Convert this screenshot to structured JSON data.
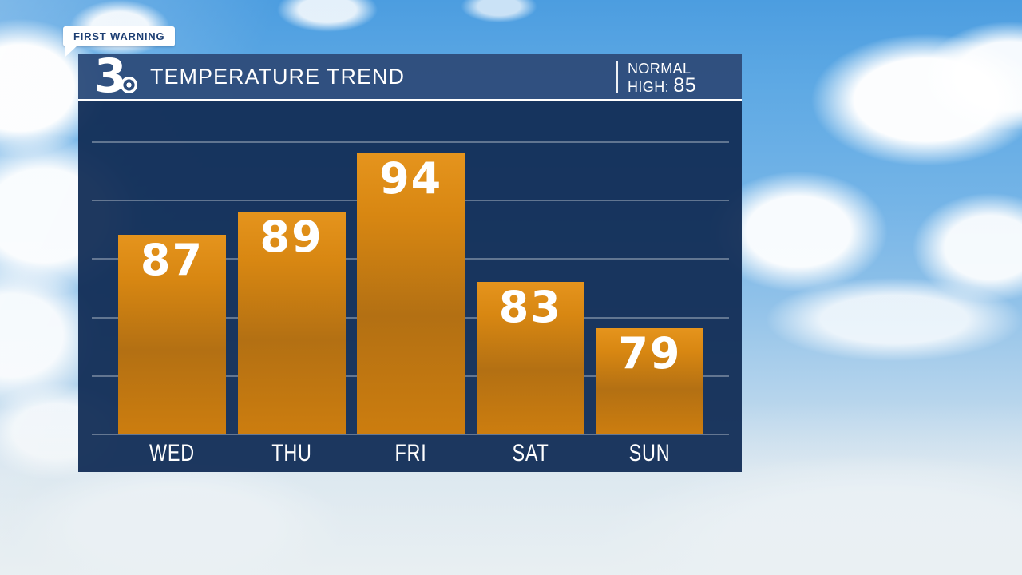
{
  "branding": {
    "bug_label": "FIRST WARNING",
    "channel_number": "3",
    "channel_logo_icon": "cbs-eye-icon"
  },
  "header": {
    "title": "TEMPERATURE TREND",
    "normal_line1": "NORMAL",
    "normal_line2_label": "HIGH:",
    "normal_line2_value": "85"
  },
  "chart_data": {
    "type": "bar",
    "title": "TEMPERATURE TREND",
    "categories": [
      "WED",
      "THU",
      "FRI",
      "SAT",
      "SUN"
    ],
    "values": [
      87,
      89,
      94,
      83,
      79
    ],
    "unit": "°F",
    "ylim": [
      70,
      95
    ],
    "gridlines": [
      70,
      75,
      80,
      85,
      90,
      95
    ],
    "grid": "horizontal lines, unlabeled",
    "legend_position": "none",
    "annotation": "NORMAL HIGH: 85",
    "value_labels": "inside bar tops"
  },
  "colors": {
    "header_bg": "#2e4d7c",
    "chart_panel_bg": "#122d56",
    "bar_orange_top": "#e5941d",
    "bar_orange_mid": "#b37013",
    "bar_orange_bottom": "#cc7d0f",
    "gridline": "rgba(255,255,255,0.32)",
    "text_white": "#ffffff",
    "bug_text_navy": "#1d3e73",
    "sky_blue": "#5ea9e4"
  }
}
